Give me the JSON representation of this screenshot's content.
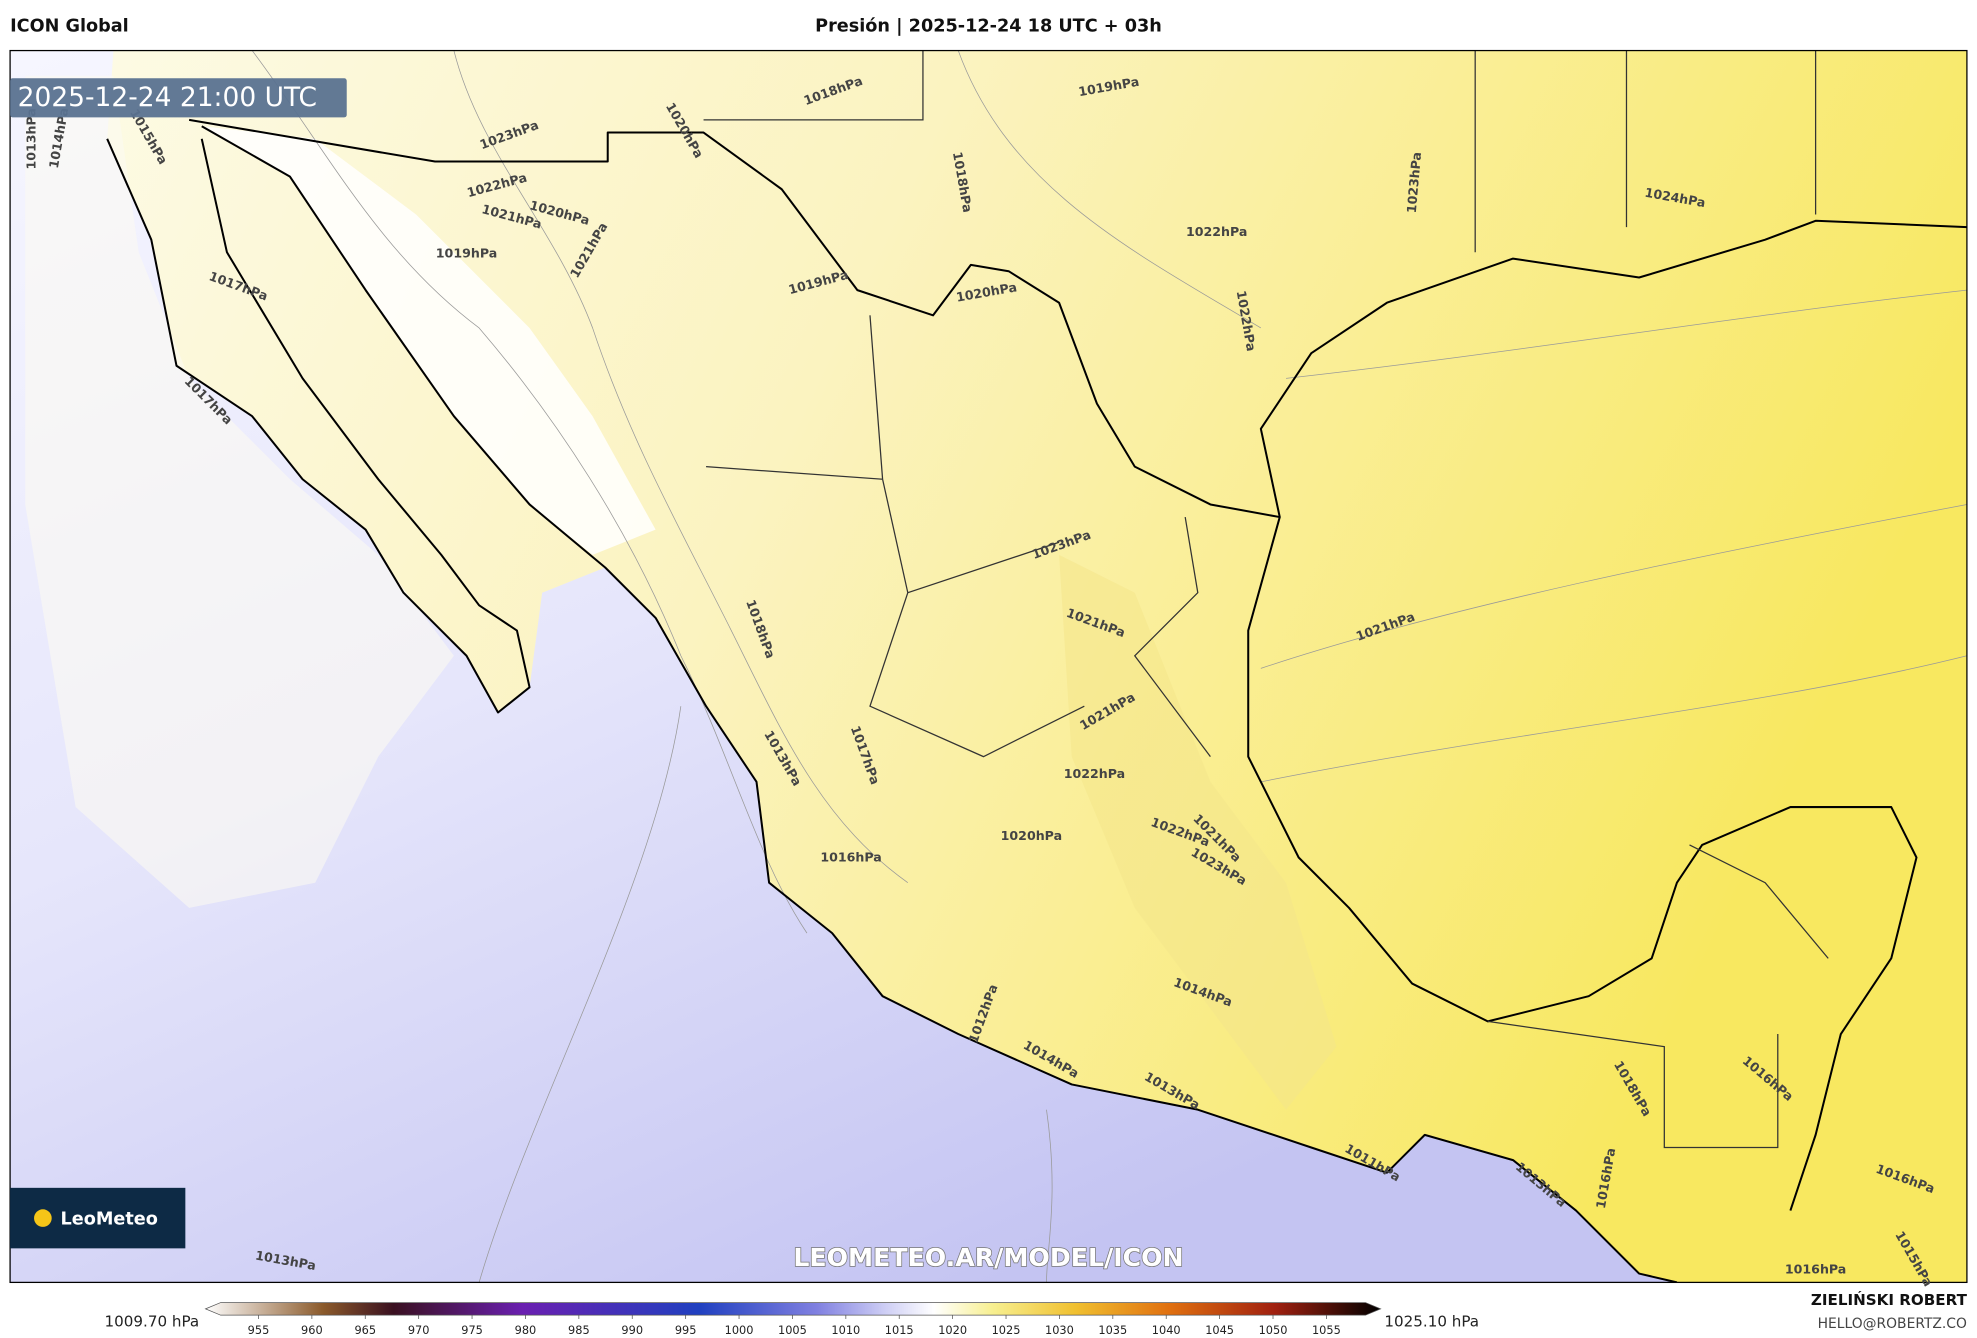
{
  "header": {
    "left": "ICON Global",
    "center": "Presión | 2025-12-24 18 UTC + 03h"
  },
  "map": {
    "timestamp": "2025-12-24 21:00 UTC",
    "isobar_labels": [
      "1013hPa",
      "1014hPa",
      "1015hPa",
      "1023hPa",
      "1018hPa",
      "1019hPa",
      "1020hPa",
      "1022hPa",
      "1021hPa",
      "1020hPa",
      "1021hPa",
      "1019hPa",
      "1018hPa",
      "1023hPa",
      "1024hPa",
      "1022hPa",
      "1022hPa",
      "1019hPa",
      "1020hPa",
      "1017hPa",
      "1017hPa",
      "1023hPa",
      "1021hPa",
      "1021hPa",
      "1018hPa",
      "1021hPa",
      "1022hPa",
      "1013hPa",
      "1017hPa",
      "1020hPa",
      "1016hPa",
      "1022hPa",
      "1021hPa",
      "1023hPa",
      "1014hPa",
      "1012hPa",
      "1014hPa",
      "1013hPa",
      "1018hPa",
      "1016hPa",
      "1011hPa",
      "1013hPa",
      "1016hPa",
      "1016hPa",
      "1016hPa",
      "1015hPa",
      "1013hPa"
    ],
    "watermark": "LEOMETEO.AR/MODEL/ICON",
    "logo": "LeoMeteo"
  },
  "colorbar": {
    "min_label": "1009.70 hPa",
    "max_label": "1025.10 hPa",
    "ticks": [
      955,
      960,
      965,
      970,
      975,
      980,
      985,
      990,
      995,
      1000,
      1005,
      1010,
      1015,
      1020,
      1025,
      1030,
      1035,
      1040,
      1045,
      1050,
      1055
    ]
  },
  "credits": {
    "author": "ZIELIŃSKI ROBERT",
    "contact": "HELLO@ROBERTZ.CO"
  }
}
